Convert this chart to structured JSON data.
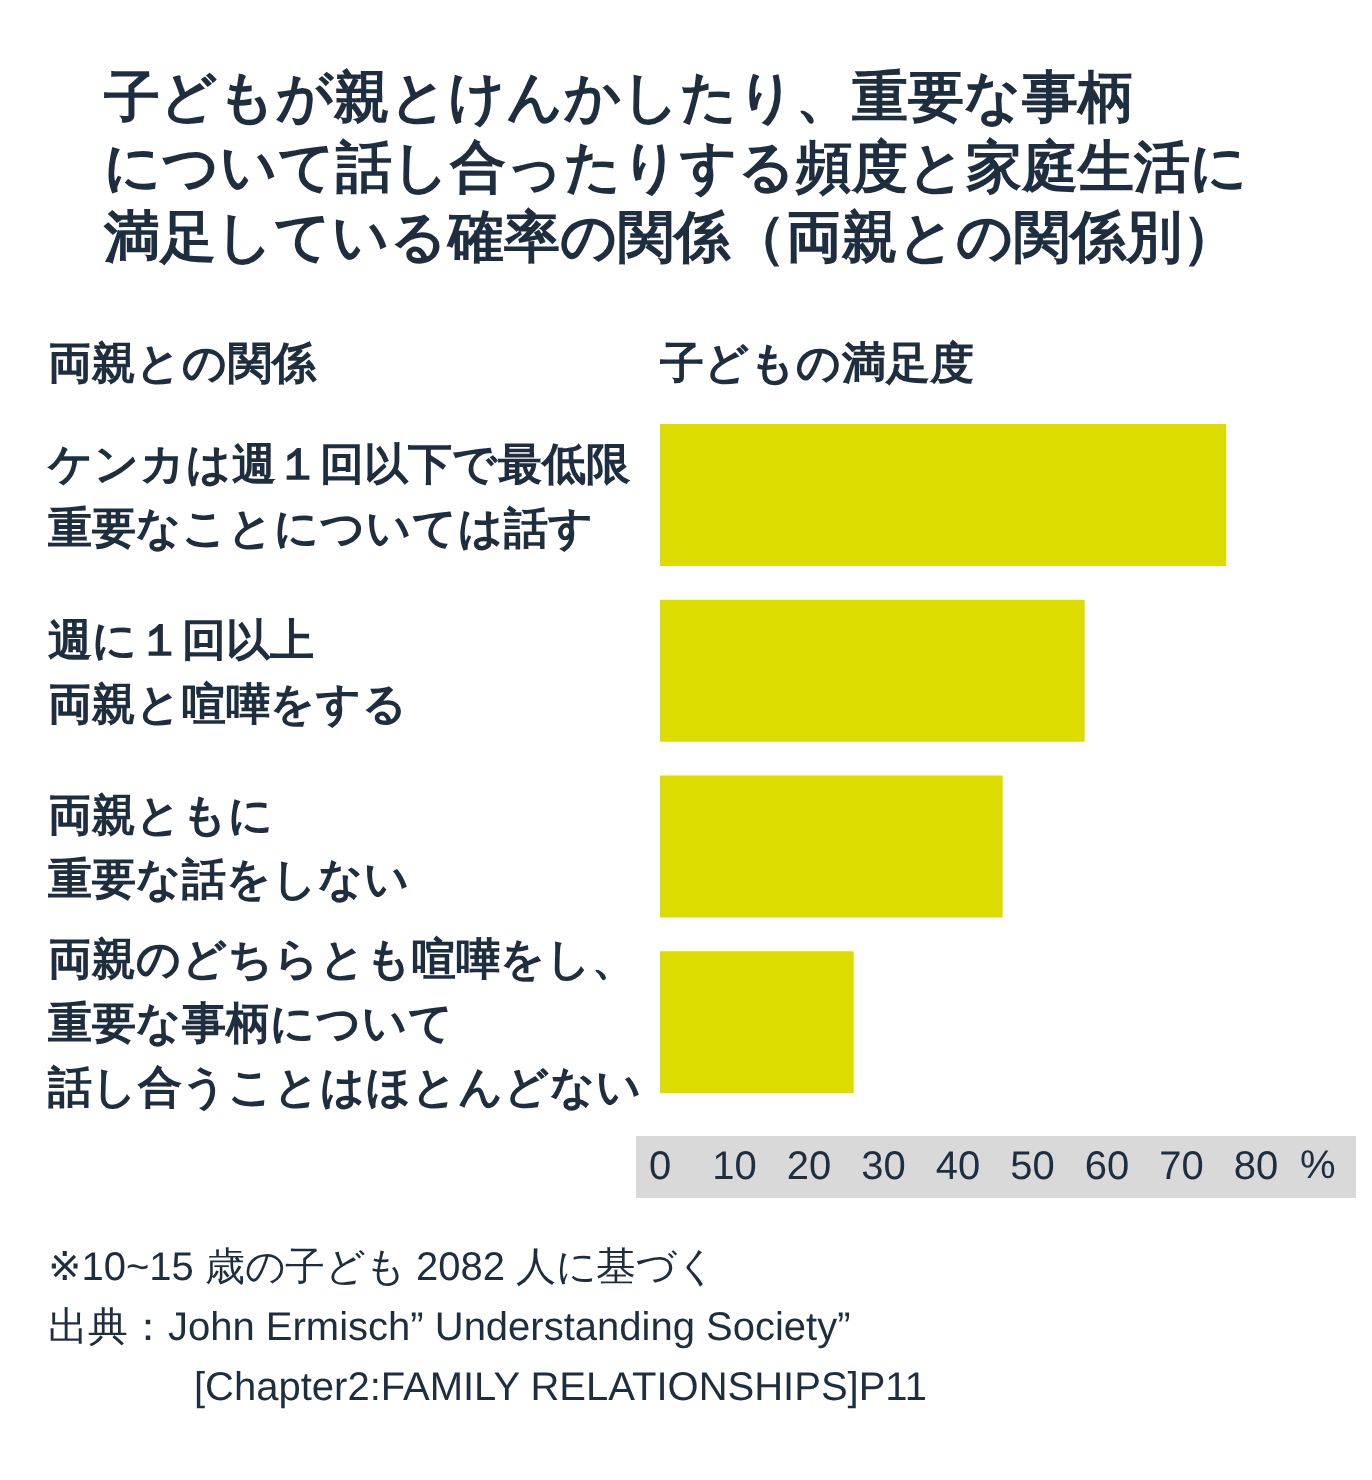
{
  "chart_data": {
    "type": "bar",
    "orientation": "horizontal",
    "title": "子どもが親とけんかしたり、重要な事柄について話し合ったりする頻度と家庭生活に満足している確率の関係（両親との関係別）",
    "ylabel": "両親との関係",
    "xlabel": "子どもの満足度",
    "categories": [
      "ケンカは週１回以下で最低限重要なことについては話す",
      "週に１回以上両親と喧嘩をする",
      "両親ともに重要な話をしない",
      "両親のどちらとも喧嘩をし、重要な事柄について話し合うことはほとんどない"
    ],
    "values": [
      76,
      57,
      46,
      26
    ],
    "color": "#dcdc00",
    "xlim": [
      0,
      80
    ],
    "xticks": [
      0,
      10,
      20,
      30,
      40,
      50,
      60,
      70,
      80
    ],
    "annotations": [
      "%",
      "※10~15 歳の子ども 2082 人に基づく",
      "出典：John Ermisch” Understanding Society” [Chapter2:FAMILY RELATIONSHIPS]P11"
    ]
  }
}
